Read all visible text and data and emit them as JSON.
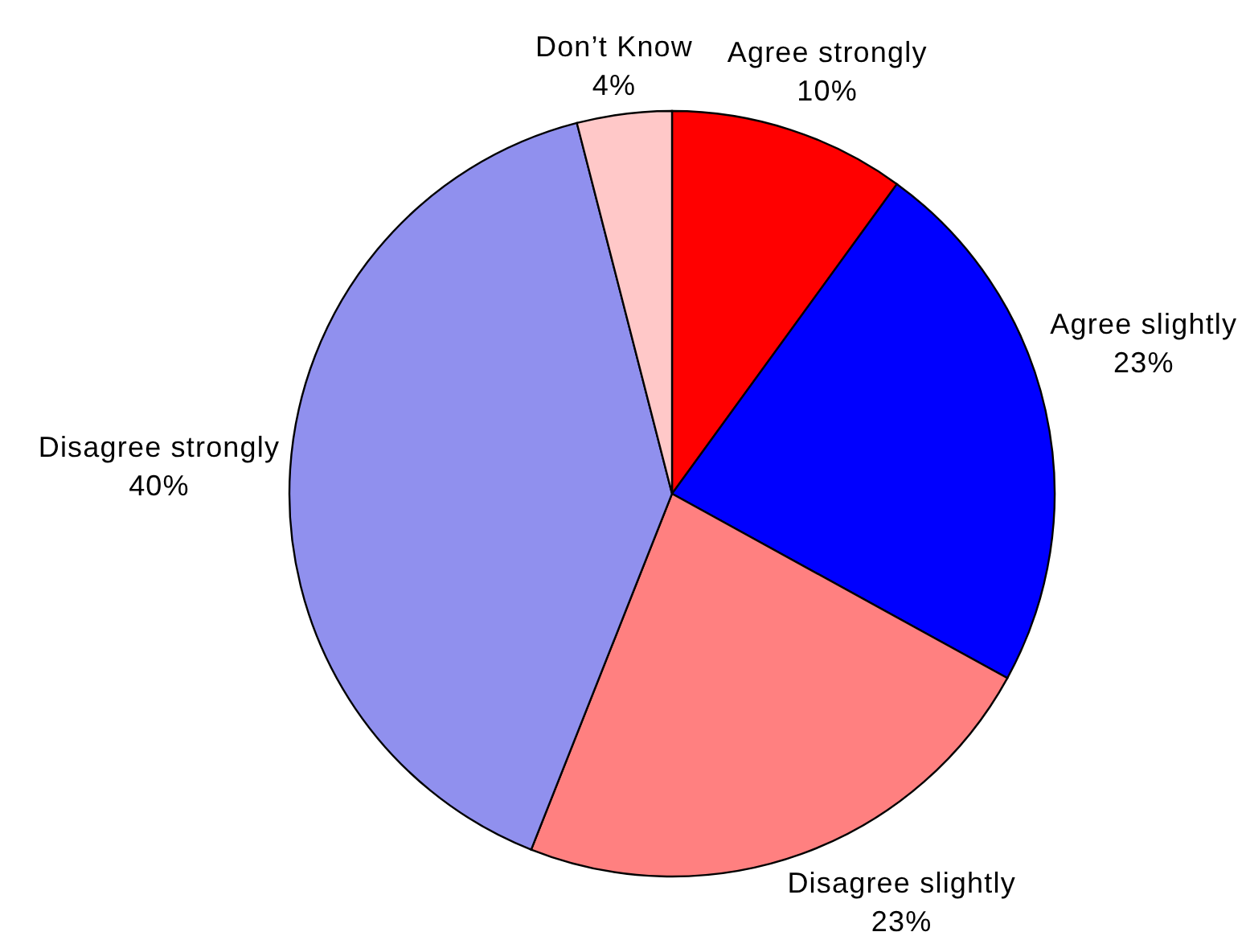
{
  "chart_data": {
    "type": "pie",
    "categories": [
      "Agree strongly",
      "Agree slightly",
      "Disagree slightly",
      "Disagree strongly",
      "Don’t Know"
    ],
    "values": [
      10,
      23,
      23,
      40,
      4
    ],
    "colors": [
      "#ff0000",
      "#0000ff",
      "#ff8080",
      "#9090ee",
      "#ffc8c8"
    ],
    "value_labels": [
      "10%",
      "23%",
      "23%",
      "40%",
      "4%"
    ]
  }
}
